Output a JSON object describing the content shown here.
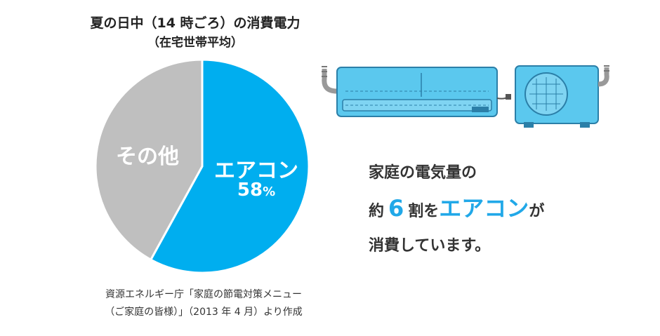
{
  "chart_data": {
    "type": "pie",
    "title": "夏の日中（14 時ごろ）の消費電力",
    "subtitle": "（在宅世帯平均）",
    "slices": [
      {
        "label": "エアコン",
        "value": 58,
        "value_label": "58",
        "unit": "%",
        "color": "#00aeef"
      },
      {
        "label": "その他",
        "value": 42,
        "color": "#bfbfbf"
      }
    ]
  },
  "source": {
    "line1": "資源エネルギー庁「家庭の節電対策メニュー",
    "line2": "（ご家庭の皆様）」（2013 年 4 月）より作成"
  },
  "message": {
    "line1": "家庭の電気量の",
    "line2_prefix": "約",
    "line2_num": "6",
    "line2_unit": "割を",
    "line2_highlight": "エアコン",
    "line2_suffix": "が",
    "line3": "消費しています。"
  },
  "colors": {
    "accent": "#00aeef",
    "other": "#bfbfbf",
    "illustration": "#5bc8ee"
  },
  "icons": [
    "air-conditioner-indoor-unit-icon",
    "air-conditioner-outdoor-unit-icon"
  ]
}
